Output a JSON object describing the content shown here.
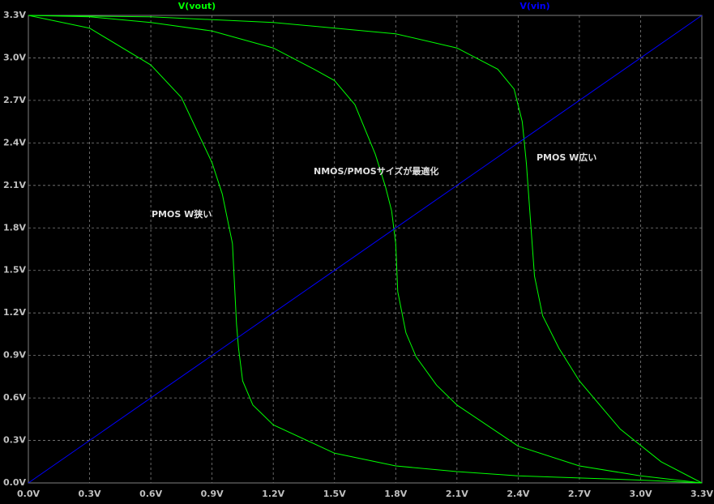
{
  "chart_data": {
    "type": "line",
    "series": [
      {
        "name": "V(vout)",
        "color": "#00ff00",
        "curves": [
          {
            "x": [
              0,
              0.3,
              0.6,
              0.75,
              0.9,
              0.95,
              1.0,
              1.02,
              1.03,
              1.05,
              1.1,
              1.2,
              1.5,
              1.8,
              2.1,
              2.4,
              2.7,
              3.0,
              3.3
            ],
            "values": [
              3.3,
              3.21,
              2.95,
              2.72,
              2.26,
              2.04,
              1.69,
              1.12,
              0.95,
              0.72,
              0.55,
              0.41,
              0.21,
              0.12,
              0.08,
              0.05,
              0.035,
              0.02,
              0
            ]
          },
          {
            "x": [
              0,
              0.3,
              0.6,
              0.9,
              1.2,
              1.4,
              1.5,
              1.6,
              1.7,
              1.75,
              1.78,
              1.8,
              1.81,
              1.85,
              1.9,
              2.0,
              2.1,
              2.4,
              2.7,
              3.0,
              3.3
            ],
            "values": [
              3.3,
              3.29,
              3.25,
              3.19,
              3.07,
              2.92,
              2.84,
              2.67,
              2.32,
              2.09,
              1.92,
              1.69,
              1.35,
              1.06,
              0.89,
              0.69,
              0.55,
              0.26,
              0.12,
              0.05,
              0
            ]
          },
          {
            "x": [
              0,
              0.6,
              1.2,
              1.8,
              2.1,
              2.3,
              2.38,
              2.42,
              2.44,
              2.46,
              2.48,
              2.52,
              2.6,
              2.7,
              2.9,
              3.1,
              3.3
            ],
            "values": [
              3.3,
              3.29,
              3.25,
              3.17,
              3.07,
              2.92,
              2.78,
              2.55,
              2.26,
              1.86,
              1.46,
              1.18,
              0.95,
              0.72,
              0.38,
              0.15,
              0
            ]
          }
        ]
      },
      {
        "name": "V(vin)",
        "color": "#0000ff",
        "curves": [
          {
            "x": [
              0,
              3.3
            ],
            "values": [
              0,
              3.3
            ]
          }
        ]
      }
    ],
    "annotations": [
      "PMOS W狭い",
      "NMOS/PMOSサイズが最適化",
      "PMOS W広い"
    ],
    "xlim": [
      0,
      3.3
    ],
    "ylim": [
      0,
      3.3
    ],
    "xticks": [
      {
        "value": 0,
        "label": "0.0V"
      },
      {
        "value": 0.3,
        "label": "0.3V"
      },
      {
        "value": 0.6,
        "label": "0.6V"
      },
      {
        "value": 0.9,
        "label": "0.9V"
      },
      {
        "value": 1.2,
        "label": "1.2V"
      },
      {
        "value": 1.5,
        "label": "1.5V"
      },
      {
        "value": 1.8,
        "label": "1.8V"
      },
      {
        "value": 2.1,
        "label": "2.1V"
      },
      {
        "value": 2.4,
        "label": "2.4V"
      },
      {
        "value": 2.7,
        "label": "2.7V"
      },
      {
        "value": 3.0,
        "label": "3.0V"
      },
      {
        "value": 3.3,
        "label": "3.3V"
      }
    ],
    "yticks": [
      {
        "value": 0,
        "label": "0.0V"
      },
      {
        "value": 0.3,
        "label": "0.3V"
      },
      {
        "value": 0.6,
        "label": "0.6V"
      },
      {
        "value": 0.9,
        "label": "0.9V"
      },
      {
        "value": 1.2,
        "label": "1.2V"
      },
      {
        "value": 1.5,
        "label": "1.5V"
      },
      {
        "value": 1.8,
        "label": "1.8V"
      },
      {
        "value": 2.1,
        "label": "2.1V"
      },
      {
        "value": 2.4,
        "label": "2.4V"
      },
      {
        "value": 2.7,
        "label": "2.7V"
      },
      {
        "value": 3.0,
        "label": "3.0V"
      },
      {
        "value": 3.3,
        "label": "3.3V"
      }
    ],
    "grid": true
  }
}
